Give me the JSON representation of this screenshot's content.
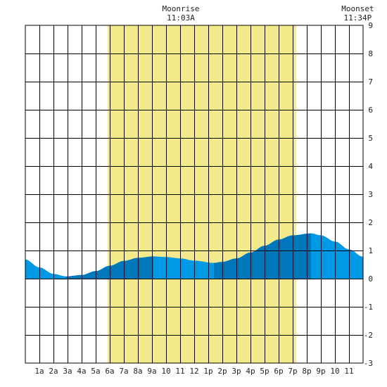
{
  "chart_data": {
    "type": "area",
    "title": "",
    "xlabel": "",
    "ylabel": "",
    "xlim": [
      0,
      24
    ],
    "ylim": [
      -3,
      9
    ],
    "grid": true,
    "x_tick_labels": [
      "1a",
      "2a",
      "3a",
      "4a",
      "5a",
      "6a",
      "7a",
      "8a",
      "9a",
      "10",
      "11",
      "12",
      "1p",
      "2p",
      "3p",
      "4p",
      "5p",
      "6p",
      "7p",
      "8p",
      "9p",
      "10",
      "11"
    ],
    "y_tick_labels": [
      "-3",
      "-2",
      "-1",
      "0",
      "1",
      "2",
      "3",
      "4",
      "5",
      "6",
      "7",
      "8",
      "9"
    ],
    "daylight": {
      "start_hour": 5.85,
      "end_hour": 19.25,
      "color": "#f3e98a"
    },
    "moonrise": {
      "label": "Moonrise",
      "time": "11:03A",
      "hour": 11.05
    },
    "moonset": {
      "label": "Moonset",
      "time": "11:34P",
      "hour": 23.57
    },
    "tide_curve": {
      "x": [
        0,
        1,
        2,
        2.9,
        4,
        5,
        6,
        7,
        8,
        9.1,
        10,
        11,
        12,
        13.4,
        14,
        15,
        16,
        17,
        18,
        19,
        20.3,
        21,
        22,
        23,
        24
      ],
      "y": [
        0.68,
        0.4,
        0.17,
        0.08,
        0.13,
        0.27,
        0.46,
        0.63,
        0.74,
        0.79,
        0.77,
        0.72,
        0.64,
        0.56,
        0.6,
        0.72,
        0.93,
        1.17,
        1.39,
        1.54,
        1.61,
        1.54,
        1.32,
        1.04,
        0.78
      ]
    },
    "tide_bands": [
      {
        "from": 0,
        "to": 2.9,
        "shade": "light"
      },
      {
        "from": 2.9,
        "to": 9.1,
        "shade": "dark"
      },
      {
        "from": 9.1,
        "to": 13.4,
        "shade": "light"
      },
      {
        "from": 13.4,
        "to": 20.3,
        "shade": "dark"
      },
      {
        "from": 20.3,
        "to": 24,
        "shade": "light"
      }
    ],
    "colors": {
      "light": "#0099e6",
      "dark": "#0077bb"
    }
  }
}
